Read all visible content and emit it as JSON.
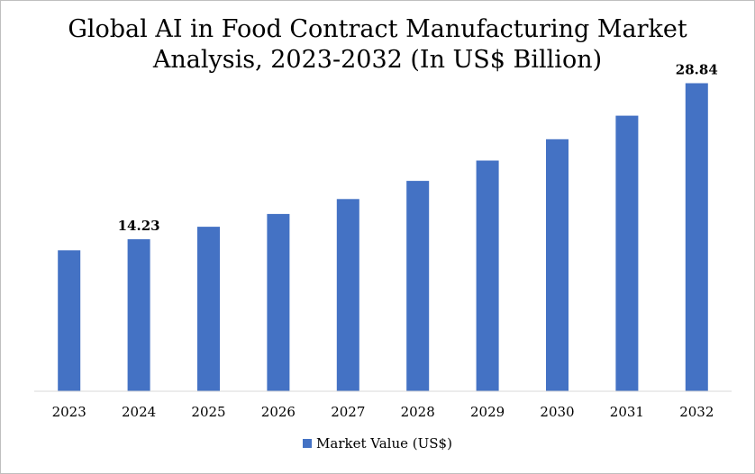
{
  "chart_data": {
    "type": "bar",
    "title": "Global AI in Food Contract Manufacturing Market Analysis, 2023-2032 (In US$ Billion)",
    "title_lines": [
      "Global AI in Food Contract Manufacturing Market",
      "Analysis, 2023-2032 (In US$ Billion)"
    ],
    "categories": [
      "2023",
      "2024",
      "2025",
      "2026",
      "2027",
      "2028",
      "2029",
      "2030",
      "2031",
      "2032"
    ],
    "series": [
      {
        "name": "Market Value (US$)",
        "color": "#4472c4",
        "values": [
          13.2,
          14.23,
          15.4,
          16.6,
          18.0,
          19.7,
          21.6,
          23.6,
          25.8,
          28.84
        ]
      }
    ],
    "data_labels": [
      {
        "category": "2024",
        "text": "14.23"
      },
      {
        "category": "2032",
        "text": "28.84"
      }
    ],
    "ylim": [
      0,
      32
    ],
    "xlabel": "",
    "ylabel": "",
    "grid": false,
    "legend_position": "bottom"
  }
}
